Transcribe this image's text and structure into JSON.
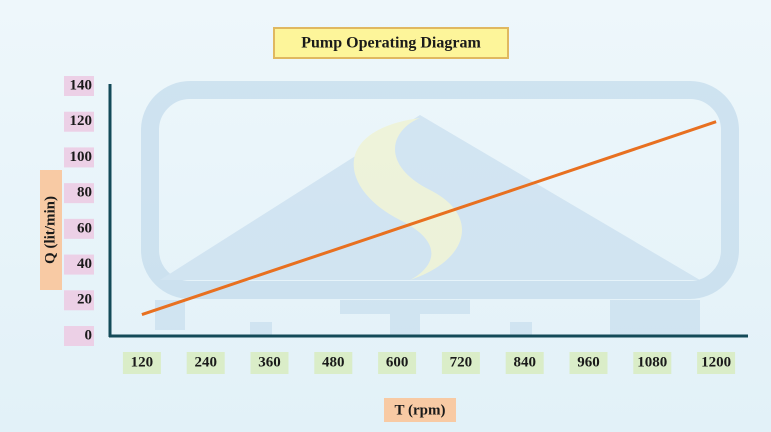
{
  "chart_data": {
    "type": "line",
    "title": "Pump Operating Diagram",
    "x_label": "T (rpm)",
    "y_label": "Q (lit/min)",
    "x": [
      120,
      240,
      360,
      480,
      600,
      720,
      840,
      960,
      1080,
      1200
    ],
    "series": [
      {
        "color": "#e87020",
        "values": [
          12,
          24,
          36,
          48,
          60,
          72,
          84,
          96,
          108,
          120
        ]
      }
    ],
    "xlim": [
      60,
      1260
    ],
    "xticks": [
      120,
      240,
      360,
      480,
      600,
      720,
      840,
      960,
      1080,
      1200
    ],
    "ylim": [
      0,
      140
    ],
    "yticks": [
      0,
      20,
      40,
      60,
      80,
      100,
      120,
      140
    ],
    "grid": false
  }
}
